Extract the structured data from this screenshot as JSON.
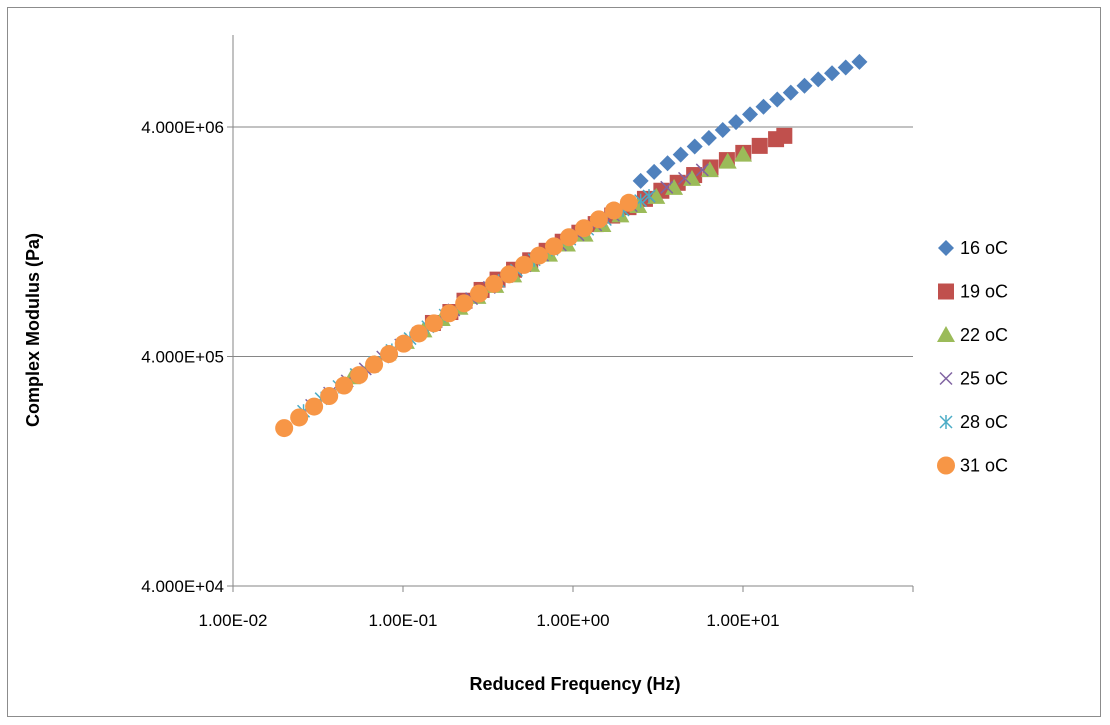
{
  "chart_data": {
    "type": "scatter",
    "title": "",
    "xlabel": "Reduced Frequency (Hz)",
    "ylabel": "Complex Modulus (Pa)",
    "xscale": "log",
    "yscale": "log",
    "xlim": [
      0.01,
      100
    ],
    "ylim": [
      40000,
      8000000
    ],
    "x_ticks": [
      0.01,
      0.1,
      1,
      10
    ],
    "x_tick_labels": [
      "1.00E-02",
      "1.00E-01",
      "1.00E+00",
      "1.00E+01"
    ],
    "y_ticks": [
      40000,
      400000,
      4000000
    ],
    "y_tick_labels": [
      "4.000E+04",
      "4.000E+05",
      "4.000E+06"
    ],
    "grid": "horizontal",
    "legend_position": "right",
    "series": [
      {
        "name": "16 oC",
        "marker": "diamond",
        "color": "#4F81BD",
        "x": [
          2.5,
          3.0,
          3.6,
          4.3,
          5.2,
          6.3,
          7.6,
          9.1,
          11,
          13.2,
          15.9,
          19.1,
          23,
          27.7,
          33.4,
          40.2,
          48.4
        ],
        "y": [
          2330000,
          2550000,
          2780000,
          3030000,
          3290000,
          3580000,
          3880000,
          4200000,
          4540000,
          4900000,
          5270000,
          5650000,
          6050000,
          6450000,
          6860000,
          7270000,
          7690000
        ]
      },
      {
        "name": "19 oC",
        "marker": "square",
        "color": "#C0504D",
        "x": [
          0.15,
          0.19,
          0.23,
          0.29,
          0.36,
          0.45,
          0.56,
          0.7,
          0.87,
          1.09,
          1.36,
          1.7,
          2.12,
          2.65,
          3.31,
          4.13,
          5.16,
          6.44,
          8.04,
          10.04,
          12.54,
          15.65,
          17.5
        ],
        "y": [
          560000,
          625000,
          700000,
          780000,
          865000,
          955000,
          1050000,
          1155000,
          1265000,
          1385000,
          1510000,
          1645000,
          1790000,
          1945000,
          2110000,
          2285000,
          2470000,
          2665000,
          2870000,
          3085000,
          3310000,
          3540000,
          3660000
        ]
      },
      {
        "name": "22 oC",
        "marker": "triangle",
        "color": "#9BBB59",
        "x": [
          0.05,
          0.064,
          0.081,
          0.104,
          0.132,
          0.169,
          0.215,
          0.274,
          0.349,
          0.445,
          0.567,
          0.723,
          0.921,
          1.17,
          1.49,
          1.9,
          2.42,
          3.09,
          3.93,
          5.01,
          6.38,
          8.13,
          10.0
        ],
        "y": [
          325000,
          365000,
          412000,
          463000,
          520000,
          583000,
          652000,
          728000,
          812000,
          903000,
          1003000,
          1112000,
          1230000,
          1358000,
          1497000,
          1648000,
          1810000,
          1985000,
          2173000,
          2376000,
          2594000,
          2827000,
          3030000
        ]
      },
      {
        "name": "25 oC",
        "marker": "x",
        "color": "#8064A2",
        "x": [
          0.029,
          0.037,
          0.047,
          0.06,
          0.076,
          0.097,
          0.123,
          0.157,
          0.199,
          0.253,
          0.322,
          0.41,
          0.521,
          0.662,
          0.842,
          1.07,
          1.36,
          1.73,
          2.2,
          2.8,
          3.56,
          4.53,
          5.76
        ],
        "y": [
          245000,
          277000,
          313000,
          353000,
          398000,
          449000,
          505000,
          568000,
          638000,
          715000,
          800000,
          893000,
          994000,
          1105000,
          1225000,
          1356000,
          1497000,
          1650000,
          1815000,
          1993000,
          2184000,
          2389000,
          2600000
        ]
      },
      {
        "name": "28 oC",
        "marker": "asterisk",
        "color": "#4BACC6",
        "x": [
          0.026,
          0.033,
          0.042,
          0.053,
          0.068,
          0.086,
          0.11,
          0.14,
          0.177,
          0.226,
          0.287,
          0.365,
          0.465,
          0.591,
          0.752,
          0.957,
          1.22,
          1.55,
          1.97,
          2.5,
          2.8
        ],
        "y": [
          231000,
          262000,
          296000,
          334000,
          377000,
          425000,
          479000,
          539000,
          606000,
          680000,
          762000,
          851000,
          949000,
          1056000,
          1172000,
          1298000,
          1434000,
          1581000,
          1740000,
          1911000,
          2000000
        ]
      },
      {
        "name": "31 oC",
        "marker": "circle",
        "color": "#F79646",
        "x": [
          0.02,
          0.0245,
          0.03,
          0.0368,
          0.045,
          0.0552,
          0.0676,
          0.0828,
          0.101,
          0.124,
          0.152,
          0.187,
          0.229,
          0.28,
          0.343,
          0.421,
          0.515,
          0.631,
          0.773,
          0.947,
          1.16,
          1.42,
          1.74,
          2.13
        ],
        "y": [
          195000,
          217000,
          242000,
          269000,
          299000,
          332000,
          369000,
          410000,
          455000,
          504000,
          558000,
          617000,
          682000,
          752000,
          829000,
          912000,
          1003000,
          1101000,
          1208000,
          1324000,
          1449000,
          1584000,
          1730000,
          1870000
        ]
      }
    ]
  }
}
